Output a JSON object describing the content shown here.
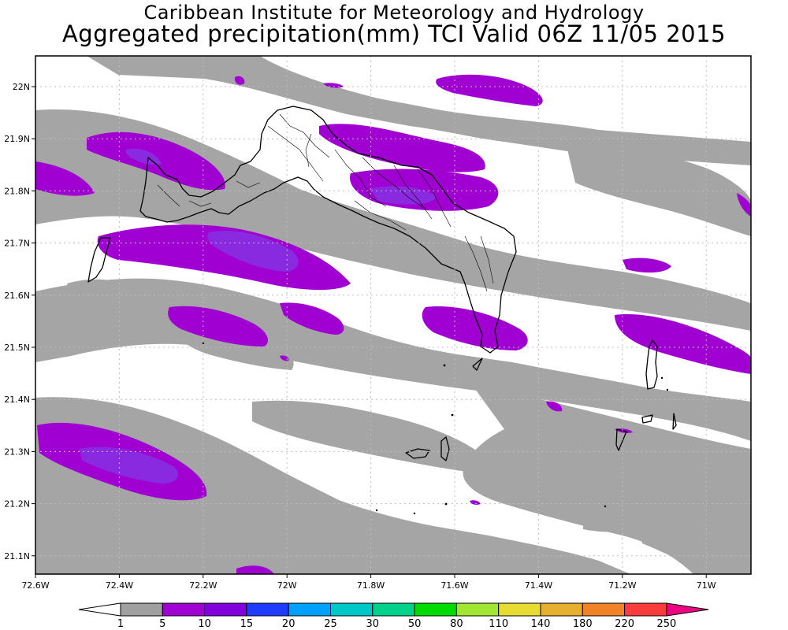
{
  "title": {
    "line1": "Caribbean Institute for Meteorology and Hydrology",
    "line2": "Aggregated precipitation(mm) TCI Valid 06Z 11/05 2015"
  },
  "axes": {
    "x_ticks": [
      "72.6W",
      "72.4W",
      "72.2W",
      "72W",
      "71.8W",
      "71.6W",
      "71.4W",
      "71.2W",
      "71W"
    ],
    "y_ticks": [
      "22N",
      "21.9N",
      "21.8N",
      "21.7N",
      "21.6N",
      "21.5N",
      "21.4N",
      "21.3N",
      "21.2N",
      "21.1N"
    ]
  },
  "colorbar": {
    "labels": [
      "1",
      "5",
      "10",
      "15",
      "20",
      "25",
      "30",
      "50",
      "80",
      "110",
      "140",
      "180",
      "220",
      "250"
    ],
    "colors": [
      "#a0a0a0",
      "#a000d2",
      "#8200dc",
      "#1e3cff",
      "#00a0ff",
      "#00c8c8",
      "#00d28c",
      "#00dc00",
      "#a0e632",
      "#e6dc32",
      "#e6af2d",
      "#f08228",
      "#fa3c3c",
      "#f00082"
    ],
    "under_color": "#ffffff",
    "over_color": "#f00082"
  },
  "map_colors": {
    "precip_1_5": "#a5a5a5",
    "precip_5_10": "#a000d2",
    "precip_10_15": "#8a2ae0",
    "coastline": "#000000",
    "grid": "#bdbdbd"
  }
}
